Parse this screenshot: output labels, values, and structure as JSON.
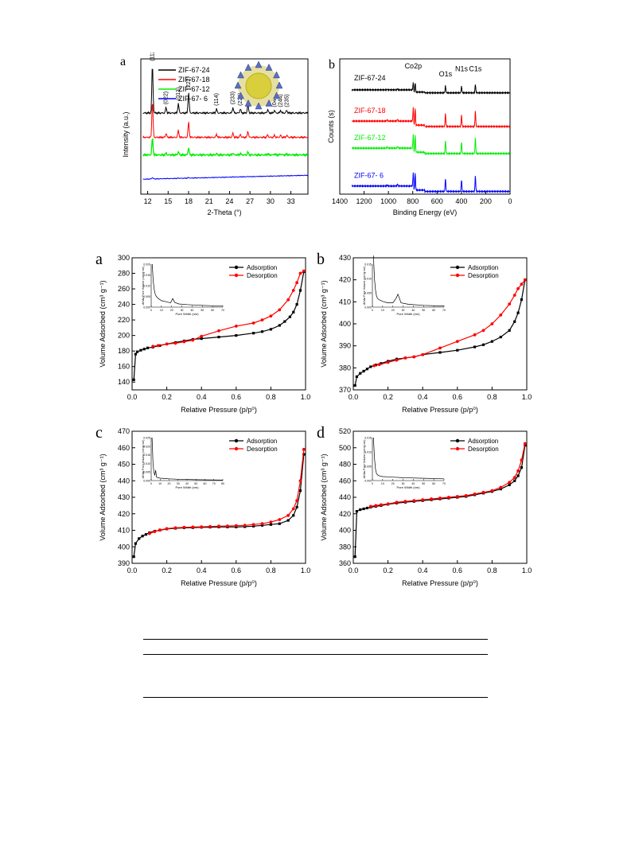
{
  "chart_data": [
    {
      "id": "xrd",
      "panel_letter": "a",
      "type": "line",
      "xlabel": "2-Theta (°)",
      "ylabel": "Intensity (a.u.)",
      "xlim": [
        11,
        35.5
      ],
      "xticks": [
        12,
        15,
        18,
        21,
        24,
        27,
        30,
        33
      ],
      "yticks_shown": false,
      "legend": "top-left",
      "series": [
        {
          "name": "ZIF-67-24",
          "color": "#000000",
          "baseline": 0.6,
          "scale": 1.0
        },
        {
          "name": "ZIF-67-18",
          "color": "#ff0000",
          "baseline": 0.42,
          "scale": 0.75
        },
        {
          "name": "ZIF-67-12",
          "color": "#00ee00",
          "baseline": 0.29,
          "scale": 0.35
        },
        {
          "name": "ZIF-67- 6",
          "color": "#0000ff",
          "baseline": 0.11,
          "scale": 0.03
        }
      ],
      "peaks": [
        {
          "x": 12.7,
          "h": 0.36,
          "label": "(112)"
        },
        {
          "x": 14.7,
          "h": 0.04,
          "label": "(022)"
        },
        {
          "x": 16.5,
          "h": 0.07,
          "label": "(013)"
        },
        {
          "x": 18.0,
          "h": 0.15,
          "label": "(222)"
        },
        {
          "x": 22.1,
          "h": 0.03,
          "label": "(114)"
        },
        {
          "x": 24.5,
          "h": 0.04,
          "label": "(233)"
        },
        {
          "x": 25.6,
          "h": 0.03,
          "label": "(224)"
        },
        {
          "x": 26.7,
          "h": 0.06,
          "label": "(134)"
        },
        {
          "x": 29.6,
          "h": 0.025,
          "label": "(334)"
        },
        {
          "x": 30.6,
          "h": 0.02,
          "label": "(044)"
        },
        {
          "x": 31.5,
          "h": 0.02,
          "label": "(244)"
        },
        {
          "x": 32.4,
          "h": 0.02,
          "label": "(235)"
        }
      ]
    },
    {
      "id": "xps",
      "panel_letter": "b",
      "type": "line",
      "xlabel": "Binding Energy (eV)",
      "ylabel": "Counts (s)",
      "xlim": [
        1400,
        0
      ],
      "xticks": [
        1400,
        1200,
        1000,
        800,
        600,
        400,
        200,
        0
      ],
      "yticks_shown": false,
      "annotations": [
        "Co2p",
        "O1s",
        "N1s",
        "C1s"
      ],
      "series": [
        {
          "name": "ZIF-67-24",
          "color": "#000000",
          "baseline": 0.76,
          "scale": 0.55
        },
        {
          "name": "ZIF-67-18",
          "color": "#ff0000",
          "baseline": 0.52,
          "scale": 1.0
        },
        {
          "name": "ZIF-67-12",
          "color": "#00ee00",
          "baseline": 0.32,
          "scale": 1.0
        },
        {
          "name": "ZIF-67- 6",
          "color": "#0000ff",
          "baseline": 0.04,
          "scale": 1.0
        }
      ]
    },
    {
      "id": "bet_a",
      "panel_letter": "a",
      "type": "line",
      "xlabel": "Relative Pressure (p/p⁰)",
      "ylabel": "Volume Adsorbed (cm³ g⁻¹)",
      "xlim": [
        0,
        1.0
      ],
      "ylim": [
        130,
        300
      ],
      "yticks": [
        140,
        160,
        180,
        200,
        220,
        240,
        260,
        280,
        300
      ],
      "xticks": [
        0.0,
        0.2,
        0.4,
        0.6,
        0.8,
        1.0
      ],
      "legend": "top-right",
      "series": [
        {
          "name": "Adsorption",
          "color": "#000000",
          "x": [
            0.01,
            0.02,
            0.03,
            0.05,
            0.07,
            0.09,
            0.12,
            0.16,
            0.2,
            0.25,
            0.3,
            0.35,
            0.4,
            0.5,
            0.6,
            0.7,
            0.75,
            0.8,
            0.85,
            0.88,
            0.91,
            0.93,
            0.95,
            0.97,
            0.99
          ],
          "y": [
            143,
            176,
            179,
            181,
            182.5,
            184,
            185,
            187,
            189,
            191,
            193,
            195,
            196,
            198,
            200,
            203,
            205,
            208,
            213,
            218,
            224,
            230,
            240,
            258,
            282
          ]
        },
        {
          "name": "Desorption",
          "color": "#ff0000",
          "x": [
            0.99,
            0.97,
            0.95,
            0.93,
            0.9,
            0.85,
            0.8,
            0.75,
            0.7,
            0.6,
            0.5,
            0.4,
            0.35,
            0.3,
            0.25,
            0.2,
            0.15,
            0.12
          ],
          "y": [
            283,
            280,
            268,
            258,
            246,
            233,
            225,
            220,
            216,
            212,
            206,
            199,
            194,
            192,
            190,
            189,
            187,
            186
          ]
        }
      ],
      "inset": {
        "xlabel": "Pore Width (nm)",
        "ylabel": "dV/dw Pore Volume (cm³/g·nm)",
        "xticks": [
          0,
          10,
          20,
          30,
          40,
          50,
          60,
          70
        ],
        "yticks": [
          "0.000",
          "0.005",
          "0.010",
          "0.015",
          "0.020"
        ],
        "x": [
          1,
          2,
          3,
          4,
          5,
          7,
          10,
          15,
          19,
          21,
          23,
          27,
          35,
          50,
          70
        ],
        "y": [
          0.02,
          0.012,
          0.008,
          0.006,
          0.005,
          0.004,
          0.003,
          0.0025,
          0.002,
          0.004,
          0.0022,
          0.0015,
          0.0012,
          0.0008,
          0.0005
        ]
      }
    },
    {
      "id": "bet_b",
      "panel_letter": "b",
      "type": "line",
      "xlabel": "Relative Pressure (p/p⁰)",
      "ylabel": "Volume Adsorbed (cm³ g⁻¹)",
      "xlim": [
        0,
        1.0
      ],
      "ylim": [
        370,
        430
      ],
      "yticks": [
        370,
        380,
        390,
        400,
        410,
        420,
        430
      ],
      "xticks": [
        0.0,
        0.2,
        0.4,
        0.6,
        0.8,
        1.0
      ],
      "legend": "top-right",
      "series": [
        {
          "name": "Adsorption",
          "color": "#000000",
          "x": [
            0.01,
            0.02,
            0.04,
            0.06,
            0.08,
            0.1,
            0.13,
            0.16,
            0.2,
            0.25,
            0.3,
            0.35,
            0.4,
            0.5,
            0.6,
            0.7,
            0.75,
            0.8,
            0.85,
            0.9,
            0.93,
            0.95,
            0.97,
            0.99
          ],
          "y": [
            372,
            376,
            377.5,
            378.5,
            379.5,
            380.5,
            381.3,
            382,
            383,
            384,
            384.5,
            385,
            386,
            387,
            388,
            389.5,
            390.5,
            392,
            394,
            397,
            401,
            405,
            411,
            420
          ]
        },
        {
          "name": "Desorption",
          "color": "#ff0000",
          "x": [
            0.99,
            0.97,
            0.95,
            0.93,
            0.9,
            0.85,
            0.8,
            0.75,
            0.7,
            0.6,
            0.5,
            0.4,
            0.35,
            0.3,
            0.25,
            0.2,
            0.15,
            0.12
          ],
          "y": [
            420,
            418,
            416,
            413,
            409,
            404,
            400,
            397,
            395,
            392,
            389,
            386,
            385,
            384.5,
            383.5,
            382.5,
            381.5,
            381
          ]
        }
      ],
      "inset": {
        "xlabel": "Pore Width (nm)",
        "ylabel": "dV/dw Pore Volume (cm³/g·nm)",
        "xticks": [
          0,
          10,
          20,
          30,
          40,
          50,
          60,
          70
        ],
        "yticks": [
          "0.000",
          "0.005",
          "0.010",
          "0.015"
        ],
        "x": [
          1,
          2,
          3,
          4,
          5,
          7,
          10,
          15,
          20,
          23,
          25,
          28,
          35,
          50,
          70
        ],
        "y": [
          0.018,
          0.01,
          0.006,
          0.004,
          0.003,
          0.0025,
          0.002,
          0.0015,
          0.0015,
          0.003,
          0.0045,
          0.0015,
          0.001,
          0.0006,
          0.0004
        ]
      }
    },
    {
      "id": "bet_c",
      "panel_letter": "c",
      "type": "line",
      "xlabel": "Relative Pressure (p/p⁰)",
      "ylabel": "Volume Adsorbed (cm³ g⁻¹)",
      "xlim": [
        0,
        1.0
      ],
      "ylim": [
        390,
        470
      ],
      "yticks": [
        390,
        400,
        410,
        420,
        430,
        440,
        450,
        460,
        470
      ],
      "xticks": [
        0.0,
        0.2,
        0.4,
        0.6,
        0.8,
        1.0
      ],
      "legend": "top-right",
      "series": [
        {
          "name": "Adsorption",
          "color": "#000000",
          "x": [
            0.01,
            0.02,
            0.04,
            0.06,
            0.08,
            0.1,
            0.13,
            0.16,
            0.2,
            0.25,
            0.3,
            0.35,
            0.4,
            0.45,
            0.5,
            0.55,
            0.6,
            0.65,
            0.7,
            0.75,
            0.8,
            0.85,
            0.9,
            0.93,
            0.95,
            0.97,
            0.99
          ],
          "y": [
            394,
            402,
            405,
            406.5,
            407.5,
            408.5,
            409.5,
            410,
            410.8,
            411.2,
            411.5,
            411.6,
            411.8,
            411.9,
            412,
            412,
            412,
            412.2,
            412.5,
            413,
            413.5,
            414,
            416,
            419,
            424,
            434,
            456
          ]
        },
        {
          "name": "Desorption",
          "color": "#ff0000",
          "x": [
            0.99,
            0.97,
            0.95,
            0.93,
            0.9,
            0.85,
            0.8,
            0.75,
            0.7,
            0.65,
            0.6,
            0.55,
            0.5,
            0.45,
            0.4,
            0.35,
            0.3,
            0.25,
            0.2,
            0.16,
            0.13,
            0.1
          ],
          "y": [
            459,
            440,
            428,
            423,
            419,
            416.5,
            415,
            414,
            413.5,
            413,
            412.8,
            412.6,
            412.5,
            412.3,
            412.1,
            412,
            411.8,
            411.5,
            411,
            410.2,
            409.2,
            408
          ]
        }
      ],
      "inset": {
        "xlabel": "Pore Width (nm)",
        "ylabel": "dV/dw Pore Volume (cm³/g·nm)",
        "xticks": [
          0,
          10,
          20,
          30,
          40,
          50,
          60,
          70,
          80
        ],
        "yticks": [
          "0.000",
          "0.005",
          "0.010",
          "0.015",
          "0.020",
          "0.025"
        ],
        "x": [
          1,
          2,
          3,
          4,
          5,
          6,
          8,
          10,
          15,
          20,
          30,
          50,
          80
        ],
        "y": [
          0.025,
          0.01,
          0.005,
          0.003,
          0.006,
          0.002,
          0.0016,
          0.0014,
          0.0012,
          0.001,
          0.0008,
          0.0005,
          0.0003
        ]
      }
    },
    {
      "id": "bet_d",
      "panel_letter": "d",
      "type": "line",
      "xlabel": "Relative Pressure (p/p⁰)",
      "ylabel": "Volume Adsorbed (cm³ g⁻¹)",
      "xlim": [
        0,
        1.0
      ],
      "ylim": [
        360,
        520
      ],
      "yticks": [
        360,
        380,
        400,
        420,
        440,
        460,
        480,
        500,
        520
      ],
      "xticks": [
        0.0,
        0.2,
        0.4,
        0.6,
        0.8,
        1.0
      ],
      "legend": "top-right",
      "series": [
        {
          "name": "Adsorption",
          "color": "#000000",
          "x": [
            0.01,
            0.02,
            0.04,
            0.06,
            0.08,
            0.1,
            0.13,
            0.16,
            0.2,
            0.25,
            0.3,
            0.35,
            0.4,
            0.45,
            0.5,
            0.55,
            0.6,
            0.65,
            0.7,
            0.75,
            0.8,
            0.85,
            0.9,
            0.93,
            0.95,
            0.97,
            0.99
          ],
          "y": [
            368,
            423,
            425,
            426,
            427,
            428,
            429,
            430,
            431.5,
            433,
            434,
            435,
            436,
            437,
            438,
            439,
            440,
            441,
            443,
            445,
            447,
            450,
            455,
            460,
            466,
            476,
            503
          ]
        },
        {
          "name": "Desorption",
          "color": "#ff0000",
          "x": [
            0.99,
            0.97,
            0.95,
            0.93,
            0.9,
            0.85,
            0.8,
            0.75,
            0.7,
            0.65,
            0.6,
            0.55,
            0.5,
            0.45,
            0.4,
            0.35,
            0.3,
            0.25,
            0.2,
            0.16,
            0.13,
            0.1
          ],
          "y": [
            505,
            485,
            472,
            464,
            458,
            452,
            448,
            446,
            444,
            442,
            441,
            440,
            439,
            438,
            437,
            436,
            435,
            434,
            432,
            431,
            430,
            429
          ]
        }
      ],
      "inset": {
        "xlabel": "Pore Width (nm)",
        "ylabel": "dV/dw Pore Volume (cm³/g·nm)",
        "xticks": [
          0,
          10,
          20,
          30,
          40,
          50,
          60,
          70
        ],
        "yticks": [
          "0.000",
          "0.005",
          "0.010",
          "0.015"
        ],
        "x": [
          1,
          2,
          3,
          4,
          5,
          7,
          10,
          15,
          20,
          30,
          50,
          70
        ],
        "y": [
          0.015,
          0.008,
          0.004,
          0.0025,
          0.002,
          0.0016,
          0.0014,
          0.0013,
          0.0012,
          0.001,
          0.0008,
          0.0006
        ]
      }
    }
  ]
}
